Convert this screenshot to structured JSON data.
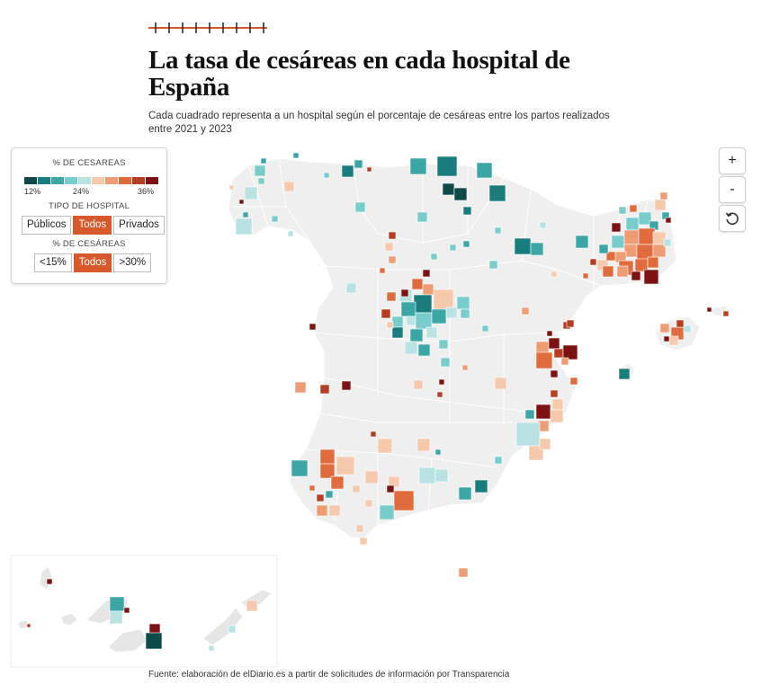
{
  "header": {
    "title": "La tasa de cesáreas en cada hospital de España",
    "subtitle": "Cada cuadrado representa a un hospital según el porcentaje de cesáreas entre los partos realizados entre 2021 y 2023"
  },
  "legend": {
    "color_title": "% DE CESAREAS",
    "ramp_colors": [
      "#0d4b4b",
      "#1a7d7d",
      "#3aa6a6",
      "#79cccc",
      "#b9e3e3",
      "#f6c9ad",
      "#ee9c73",
      "#e06c3e",
      "#b63d1f",
      "#7d1212"
    ],
    "tick_min": "12%",
    "tick_mid": "24%",
    "tick_max": "36%",
    "type_title": "TIPO DE HOSPITAL",
    "type_buttons": [
      "Públicos",
      "Todos",
      "Privados"
    ],
    "type_selected": "Todos",
    "rate_title": "% DE CESÁREAS",
    "rate_buttons": [
      "<15%",
      "Todos",
      ">30%"
    ],
    "rate_selected": "Todos"
  },
  "controls": {
    "zoom_in": "+",
    "zoom_out": "-",
    "reset_icon": "reset-icon"
  },
  "map": {
    "region": "España",
    "inset": "Canarias"
  },
  "footer": {
    "source": "Fuente: elaboración de elDiario.es a partir de solicitudes de información por Transparencia"
  }
}
